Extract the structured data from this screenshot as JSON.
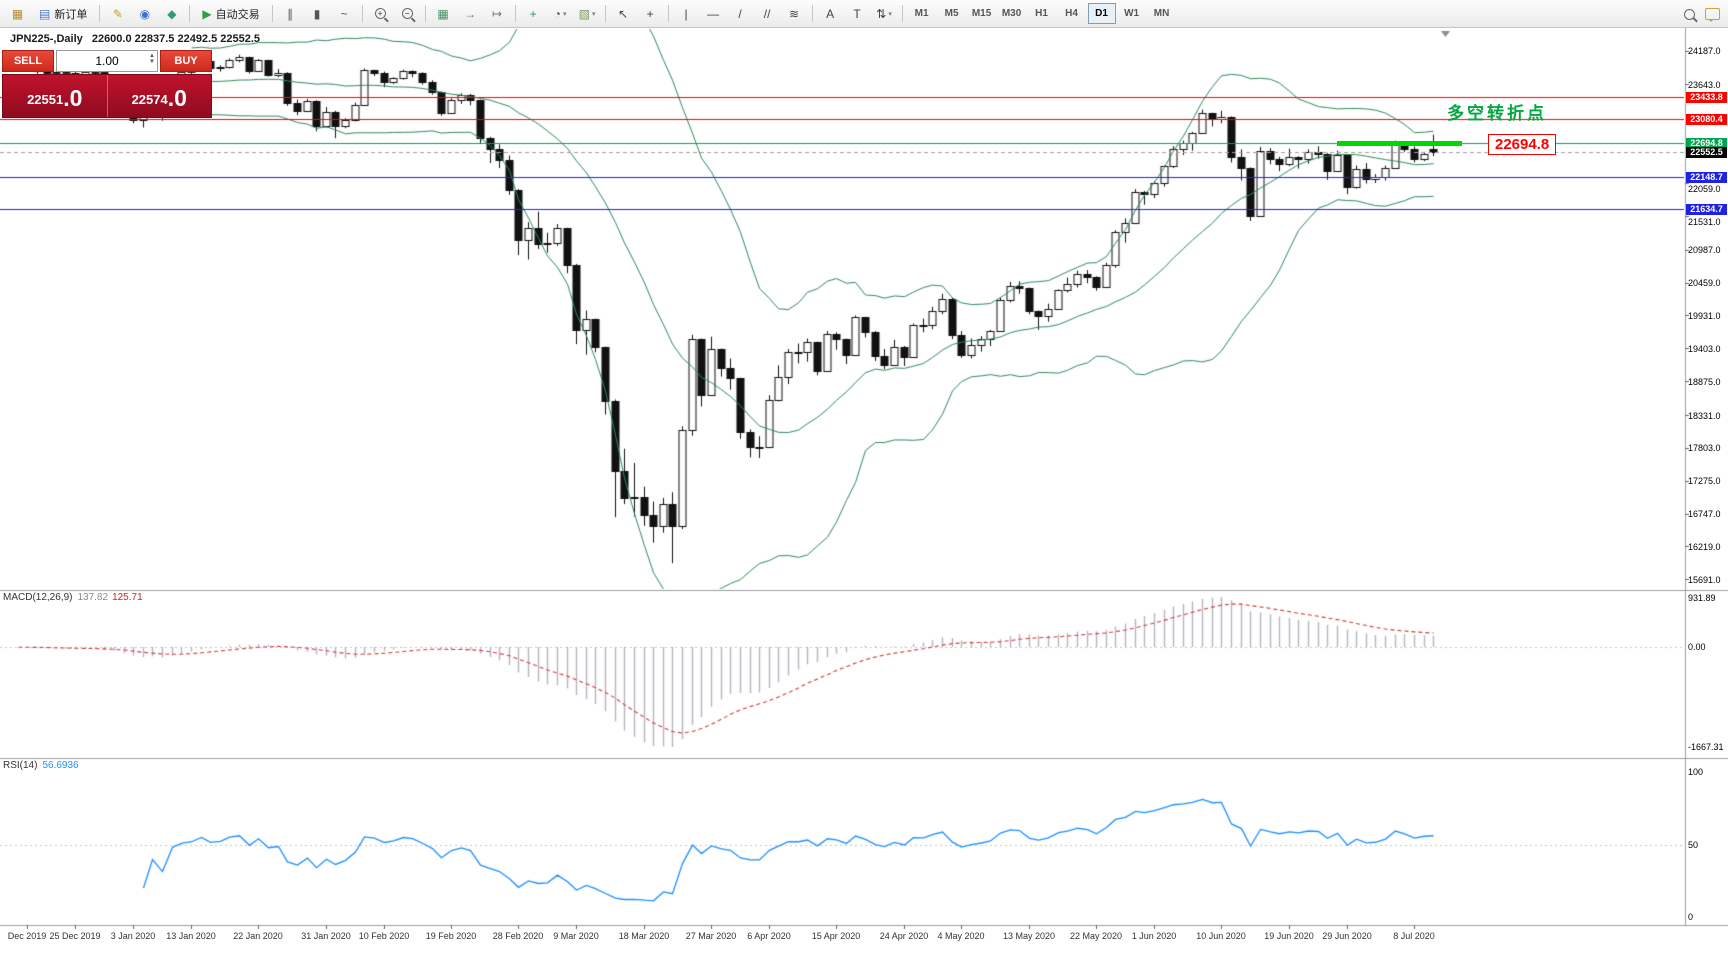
{
  "toolbar": {
    "items": [
      {
        "type": "icon",
        "name": "new-chart-icon",
        "glyph": "▦",
        "color": "#b58a2f"
      },
      {
        "type": "button",
        "name": "new-order-button",
        "glyph": "▤",
        "color": "#4a78c8",
        "label": "新订单"
      },
      {
        "type": "sep"
      },
      {
        "type": "icon",
        "name": "metaeditor-icon",
        "glyph": "✎",
        "color": "#c9992b"
      },
      {
        "type": "icon",
        "name": "profiles-icon",
        "glyph": "◉",
        "color": "#3b6fd4"
      },
      {
        "type": "icon",
        "name": "market-watch-icon",
        "glyph": "◆",
        "color": "#2f9e6e"
      },
      {
        "type": "sep"
      },
      {
        "type": "button",
        "name": "autotrading-button",
        "glyph": "▶",
        "color": "#2f9e44",
        "label": "自动交易"
      },
      {
        "type": "sep"
      },
      {
        "type": "icon",
        "name": "bar-chart-icon",
        "glyph": "∥",
        "color": "#555555"
      },
      {
        "type": "icon",
        "name": "candlestick-chart-icon",
        "glyph": "▮",
        "color": "#555555"
      },
      {
        "type": "icon",
        "name": "line-chart-icon",
        "glyph": "~",
        "color": "#555555"
      },
      {
        "type": "sep"
      },
      {
        "type": "zoom",
        "name": "zoom-in-icon",
        "sign": "+"
      },
      {
        "type": "zoom",
        "name": "zoom-out-icon",
        "sign": "−"
      },
      {
        "type": "sep"
      },
      {
        "type": "icon",
        "name": "tile-windows-icon",
        "glyph": "▦",
        "color": "#3f8f5f"
      },
      {
        "type": "icon",
        "name": "auto-scroll-icon",
        "glyph": "→",
        "color": "#777777"
      },
      {
        "type": "icon",
        "name": "chart-shift-icon",
        "glyph": "↦",
        "color": "#777777"
      },
      {
        "type": "sep"
      },
      {
        "type": "icon",
        "name": "indicators-add-icon",
        "glyph": "+",
        "color": "#1f9d55"
      },
      {
        "type": "icon-dd",
        "name": "periods-icon",
        "glyph": "◔",
        "color": "#555555"
      },
      {
        "type": "icon-dd",
        "name": "templates-icon",
        "glyph": "▧",
        "color": "#7a9a5a"
      },
      {
        "type": "sep"
      },
      {
        "type": "icon",
        "name": "cursor-icon",
        "glyph": "↖",
        "color": "#444444"
      },
      {
        "type": "icon",
        "name": "crosshair-icon",
        "glyph": "+",
        "color": "#444444"
      },
      {
        "type": "sep"
      },
      {
        "type": "icon",
        "name": "vertical-line-icon",
        "glyph": "|",
        "color": "#444444"
      },
      {
        "type": "icon",
        "name": "horizontal-line-icon",
        "glyph": "—",
        "color": "#444444"
      },
      {
        "type": "icon",
        "name": "trendline-icon",
        "glyph": "/",
        "color": "#444444"
      },
      {
        "type": "icon",
        "name": "channel-icon",
        "glyph": "//",
        "color": "#444444"
      },
      {
        "type": "icon",
        "name": "fibonacci-icon",
        "glyph": "≋",
        "color": "#444444"
      },
      {
        "type": "sep"
      },
      {
        "type": "icon",
        "name": "text-icon",
        "glyph": "A",
        "color": "#444444"
      },
      {
        "type": "icon",
        "name": "text-label-icon",
        "glyph": "T",
        "color": "#444444"
      },
      {
        "type": "icon-dd",
        "name": "arrows-icon",
        "glyph": "⇅",
        "color": "#444444"
      },
      {
        "type": "sep"
      }
    ],
    "timeframes": [
      "M1",
      "M5",
      "M15",
      "M30",
      "H1",
      "H4",
      "D1",
      "W1",
      "MN"
    ],
    "active_timeframe": "D1"
  },
  "chart": {
    "symbol_period": "JPN225-,Daily",
    "ohlc_text": "22600.0 22837.5 22492.5 22552.5"
  },
  "one_click": {
    "sell_label": "SELL",
    "buy_label": "BUY",
    "volume": "1.00",
    "bid_int": "22551",
    "bid_frac": ".0",
    "ask_int": "22574",
    "ask_frac": ".0"
  },
  "annotations": {
    "turning_point": "多空转折点",
    "price_callout": "22694.8"
  },
  "panes": {
    "macd": {
      "name": "MACD(12,26,9)",
      "value_main": "137.82",
      "value_signal": "125.71",
      "axis_max": "931.89",
      "axis_zero": "0.00",
      "axis_min": "-1667.31"
    },
    "rsi": {
      "name": "RSI(14)",
      "value": "56.6936",
      "axis": [
        "100",
        "50",
        "0"
      ]
    }
  },
  "chart_data": {
    "type": "candlestick",
    "symbol": "JPN225",
    "timeframe": "Daily",
    "last_bar_ohlc": [
      22600.0,
      22837.5,
      22492.5,
      22552.5
    ],
    "price_range": [
      15600,
      24470
    ],
    "y_axis_labels": [
      "24187.0",
      "23643.0",
      "22059.0",
      "21531.0",
      "20987.0",
      "20459.0",
      "19931.0",
      "19403.0",
      "18875.0",
      "18331.0",
      "17803.0",
      "17275.0",
      "16747.0",
      "16219.0",
      "15691.0"
    ],
    "x_axis_labels": [
      {
        "label": "Dec 2019",
        "bar": 2
      },
      {
        "label": "25 Dec 2019",
        "bar": 7
      },
      {
        "label": "3 Jan 2020",
        "bar": 13
      },
      {
        "label": "13 Jan 2020",
        "bar": 19
      },
      {
        "label": "22 Jan 2020",
        "bar": 26
      },
      {
        "label": "31 Jan 2020",
        "bar": 33
      },
      {
        "label": "10 Feb 2020",
        "bar": 39
      },
      {
        "label": "19 Feb 2020",
        "bar": 46
      },
      {
        "label": "28 Feb 2020",
        "bar": 53
      },
      {
        "label": "9 Mar 2020",
        "bar": 59
      },
      {
        "label": "18 Mar 2020",
        "bar": 66
      },
      {
        "label": "27 Mar 2020",
        "bar": 73
      },
      {
        "label": "6 Apr 2020",
        "bar": 79
      },
      {
        "label": "15 Apr 2020",
        "bar": 86
      },
      {
        "label": "24 Apr 2020",
        "bar": 93
      },
      {
        "label": "4 May 2020",
        "bar": 99
      },
      {
        "label": "13 May 2020",
        "bar": 106
      },
      {
        "label": "22 May 2020",
        "bar": 113
      },
      {
        "label": "1 Jun 2020",
        "bar": 119
      },
      {
        "label": "10 Jun 2020",
        "bar": 126
      },
      {
        "label": "19 Jun 2020",
        "bar": 133
      },
      {
        "label": "29 Jun 2020",
        "bar": 139
      },
      {
        "label": "8 Jul 2020",
        "bar": 146
      }
    ],
    "levels": [
      {
        "value": 23433.8,
        "label": "23433.8",
        "color": "#ff0000"
      },
      {
        "value": 23080.4,
        "label": "23080.4",
        "color": "#ff0000"
      },
      {
        "value": 22694.8,
        "label": "22694.8",
        "color": "#00a550"
      },
      {
        "value": 22148.7,
        "label": "22148.7",
        "color": "#2121e6"
      },
      {
        "value": 21634.7,
        "label": "21634.7",
        "color": "#2121e6"
      }
    ],
    "bid": {
      "value": 22552.5,
      "label": "22552.5",
      "badge_color": "#000000"
    },
    "highlight_segment": {
      "value": 22694.8,
      "color": "#00d800",
      "from_bar": 138,
      "to_bar": 151
    },
    "indicators": {
      "bollinger": {
        "period": 20,
        "deviation": 2,
        "color": "#2e8b57"
      },
      "macd": {
        "fast": 12,
        "slow": 26,
        "signal": 9,
        "histogram_color": "#b6b6c4",
        "signal_color": "#d43b3b"
      },
      "rsi": {
        "period": 14,
        "color": "#1e90ff"
      }
    },
    "ohlc": [
      [
        23900,
        24000,
        23870,
        23950
      ],
      [
        23950,
        24040,
        23930,
        24010
      ],
      [
        24010,
        24020,
        23880,
        23900
      ],
      [
        23900,
        23920,
        23800,
        23860
      ],
      [
        23860,
        23900,
        23800,
        23830
      ],
      [
        23830,
        23870,
        23780,
        23840
      ],
      [
        23840,
        23860,
        23790,
        23830
      ],
      [
        23830,
        23850,
        23780,
        23790
      ],
      [
        23790,
        23870,
        23770,
        23850
      ],
      [
        23850,
        23880,
        23790,
        23840
      ],
      [
        23840,
        23850,
        23600,
        23650
      ],
      [
        23650,
        23690,
        23560,
        23640
      ],
      [
        23640,
        23660,
        23280,
        23320
      ],
      [
        23320,
        23370,
        23020,
        23080
      ],
      [
        23080,
        23250,
        22950,
        23200
      ],
      [
        23200,
        23600,
        23180,
        23575
      ],
      [
        23575,
        23620,
        23060,
        23200
      ],
      [
        23200,
        23760,
        23190,
        23740
      ],
      [
        23740,
        23870,
        23710,
        23850
      ],
      [
        23850,
        23920,
        23800,
        23900
      ],
      [
        23900,
        24040,
        23880,
        24025
      ],
      [
        24025,
        24030,
        23870,
        23900
      ],
      [
        23900,
        23950,
        23850,
        23930
      ],
      [
        23930,
        24060,
        23900,
        24040
      ],
      [
        24040,
        24120,
        24000,
        24080
      ],
      [
        24080,
        24090,
        23820,
        23860
      ],
      [
        23860,
        24050,
        23850,
        24030
      ],
      [
        24030,
        24040,
        23770,
        23800
      ],
      [
        23800,
        23890,
        23760,
        23830
      ],
      [
        23830,
        23840,
        23300,
        23340
      ],
      [
        23340,
        23400,
        23150,
        23215
      ],
      [
        23215,
        23410,
        23200,
        23380
      ],
      [
        23380,
        23390,
        22890,
        22980
      ],
      [
        22980,
        23280,
        22950,
        23200
      ],
      [
        23200,
        23220,
        22780,
        22970
      ],
      [
        22970,
        23100,
        22940,
        23080
      ],
      [
        23080,
        23350,
        23050,
        23320
      ],
      [
        23320,
        23900,
        23300,
        23870
      ],
      [
        23870,
        23880,
        23780,
        23830
      ],
      [
        23830,
        23850,
        23600,
        23680
      ],
      [
        23680,
        23760,
        23650,
        23740
      ],
      [
        23740,
        23880,
        23720,
        23860
      ],
      [
        23860,
        23870,
        23760,
        23830
      ],
      [
        23830,
        23840,
        23640,
        23690
      ],
      [
        23690,
        23710,
        23480,
        23520
      ],
      [
        23520,
        23530,
        23140,
        23190
      ],
      [
        23190,
        23420,
        23180,
        23400
      ],
      [
        23400,
        23500,
        23330,
        23480
      ],
      [
        23480,
        23490,
        23310,
        23390
      ],
      [
        23390,
        23400,
        22700,
        22780
      ],
      [
        22780,
        22800,
        22380,
        22600
      ],
      [
        22600,
        22680,
        22300,
        22430
      ],
      [
        22430,
        22500,
        21870,
        21950
      ],
      [
        21950,
        21960,
        20900,
        21140
      ],
      [
        21140,
        21430,
        20830,
        21340
      ],
      [
        21340,
        21600,
        21000,
        21080
      ],
      [
        21080,
        21260,
        20940,
        21100
      ],
      [
        21100,
        21400,
        21050,
        21330
      ],
      [
        21330,
        21340,
        20610,
        20750
      ],
      [
        20750,
        20760,
        19470,
        19700
      ],
      [
        19700,
        20010,
        19300,
        19870
      ],
      [
        19870,
        19880,
        19340,
        19420
      ],
      [
        19420,
        19430,
        18340,
        18560
      ],
      [
        18560,
        18580,
        16690,
        17430
      ],
      [
        17430,
        17790,
        16900,
        17000
      ],
      [
        17000,
        17560,
        16700,
        17010
      ],
      [
        17010,
        17180,
        16550,
        16730
      ],
      [
        16730,
        16940,
        16280,
        16550
      ],
      [
        16550,
        17000,
        16440,
        16900
      ],
      [
        16900,
        17090,
        15950,
        16550
      ],
      [
        16550,
        18150,
        16500,
        18090
      ],
      [
        18090,
        19620,
        18000,
        19550
      ],
      [
        19550,
        19560,
        18470,
        18660
      ],
      [
        18660,
        19590,
        18650,
        19390
      ],
      [
        19390,
        19400,
        18950,
        19080
      ],
      [
        19080,
        19240,
        18740,
        18920
      ],
      [
        18920,
        18930,
        17950,
        18060
      ],
      [
        18060,
        18100,
        17650,
        17820
      ],
      [
        17820,
        17990,
        17640,
        17820
      ],
      [
        17820,
        18650,
        17800,
        18580
      ],
      [
        18580,
        19130,
        18550,
        18950
      ],
      [
        18950,
        19390,
        18830,
        19350
      ],
      [
        19350,
        19480,
        19160,
        19350
      ],
      [
        19350,
        19560,
        19190,
        19500
      ],
      [
        19500,
        19510,
        18970,
        19040
      ],
      [
        19040,
        19680,
        19030,
        19640
      ],
      [
        19640,
        19660,
        19380,
        19550
      ],
      [
        19550,
        19560,
        19150,
        19290
      ],
      [
        19290,
        19930,
        19280,
        19900
      ],
      [
        19900,
        19910,
        19580,
        19670
      ],
      [
        19670,
        19680,
        19200,
        19280
      ],
      [
        19280,
        19390,
        19070,
        19140
      ],
      [
        19140,
        19540,
        19130,
        19430
      ],
      [
        19430,
        19440,
        19120,
        19260
      ],
      [
        19260,
        19800,
        19250,
        19780
      ],
      [
        19780,
        19880,
        19660,
        19770
      ],
      [
        19770,
        20070,
        19710,
        20000
      ],
      [
        20000,
        20280,
        19950,
        20200
      ],
      [
        20200,
        20210,
        19550,
        19620
      ],
      [
        19620,
        19680,
        19250,
        19300
      ],
      [
        19300,
        19560,
        19240,
        19450
      ],
      [
        19450,
        19600,
        19350,
        19550
      ],
      [
        19550,
        19700,
        19440,
        19675
      ],
      [
        19675,
        20220,
        19670,
        20180
      ],
      [
        20180,
        20470,
        20140,
        20400
      ],
      [
        20400,
        20480,
        20280,
        20370
      ],
      [
        20370,
        20380,
        19950,
        20000
      ],
      [
        20000,
        20010,
        19700,
        19915
      ],
      [
        19915,
        20120,
        19830,
        20040
      ],
      [
        20040,
        20350,
        20020,
        20340
      ],
      [
        20340,
        20540,
        20300,
        20430
      ],
      [
        20430,
        20650,
        20380,
        20600
      ],
      [
        20600,
        20660,
        20450,
        20550
      ],
      [
        20550,
        20560,
        20330,
        20390
      ],
      [
        20390,
        20780,
        20380,
        20740
      ],
      [
        20740,
        21300,
        20700,
        21270
      ],
      [
        21270,
        21490,
        21100,
        21420
      ],
      [
        21420,
        21960,
        21400,
        21920
      ],
      [
        21920,
        21930,
        21710,
        21880
      ],
      [
        21880,
        22090,
        21820,
        22060
      ],
      [
        22060,
        22340,
        22000,
        22330
      ],
      [
        22330,
        22650,
        22300,
        22610
      ],
      [
        22610,
        22740,
        22510,
        22700
      ],
      [
        22700,
        22880,
        22580,
        22860
      ],
      [
        22860,
        23240,
        22850,
        23180
      ],
      [
        23180,
        23190,
        22970,
        23090
      ],
      [
        23090,
        23220,
        23020,
        23120
      ],
      [
        23120,
        23130,
        22390,
        22470
      ],
      [
        22470,
        22600,
        22100,
        22300
      ],
      [
        22300,
        22310,
        21450,
        21530
      ],
      [
        21530,
        22640,
        21520,
        22580
      ],
      [
        22580,
        22620,
        22360,
        22450
      ],
      [
        22450,
        22480,
        22250,
        22360
      ],
      [
        22360,
        22610,
        22330,
        22480
      ],
      [
        22480,
        22490,
        22290,
        22440
      ],
      [
        22440,
        22600,
        22370,
        22550
      ],
      [
        22550,
        22650,
        22450,
        22530
      ],
      [
        22530,
        22540,
        22110,
        22260
      ],
      [
        22260,
        22580,
        22250,
        22510
      ],
      [
        22510,
        22520,
        21880,
        21990
      ],
      [
        21990,
        22340,
        21970,
        22290
      ],
      [
        22290,
        22380,
        22050,
        22120
      ],
      [
        22120,
        22200,
        22060,
        22150
      ],
      [
        22150,
        22340,
        22100,
        22300
      ],
      [
        22300,
        22740,
        22290,
        22720
      ],
      [
        22720,
        22730,
        22560,
        22610
      ],
      [
        22610,
        22650,
        22390,
        22440
      ],
      [
        22440,
        22560,
        22410,
        22530
      ],
      [
        22600,
        22837.5,
        22492.5,
        22552.5
      ]
    ]
  }
}
